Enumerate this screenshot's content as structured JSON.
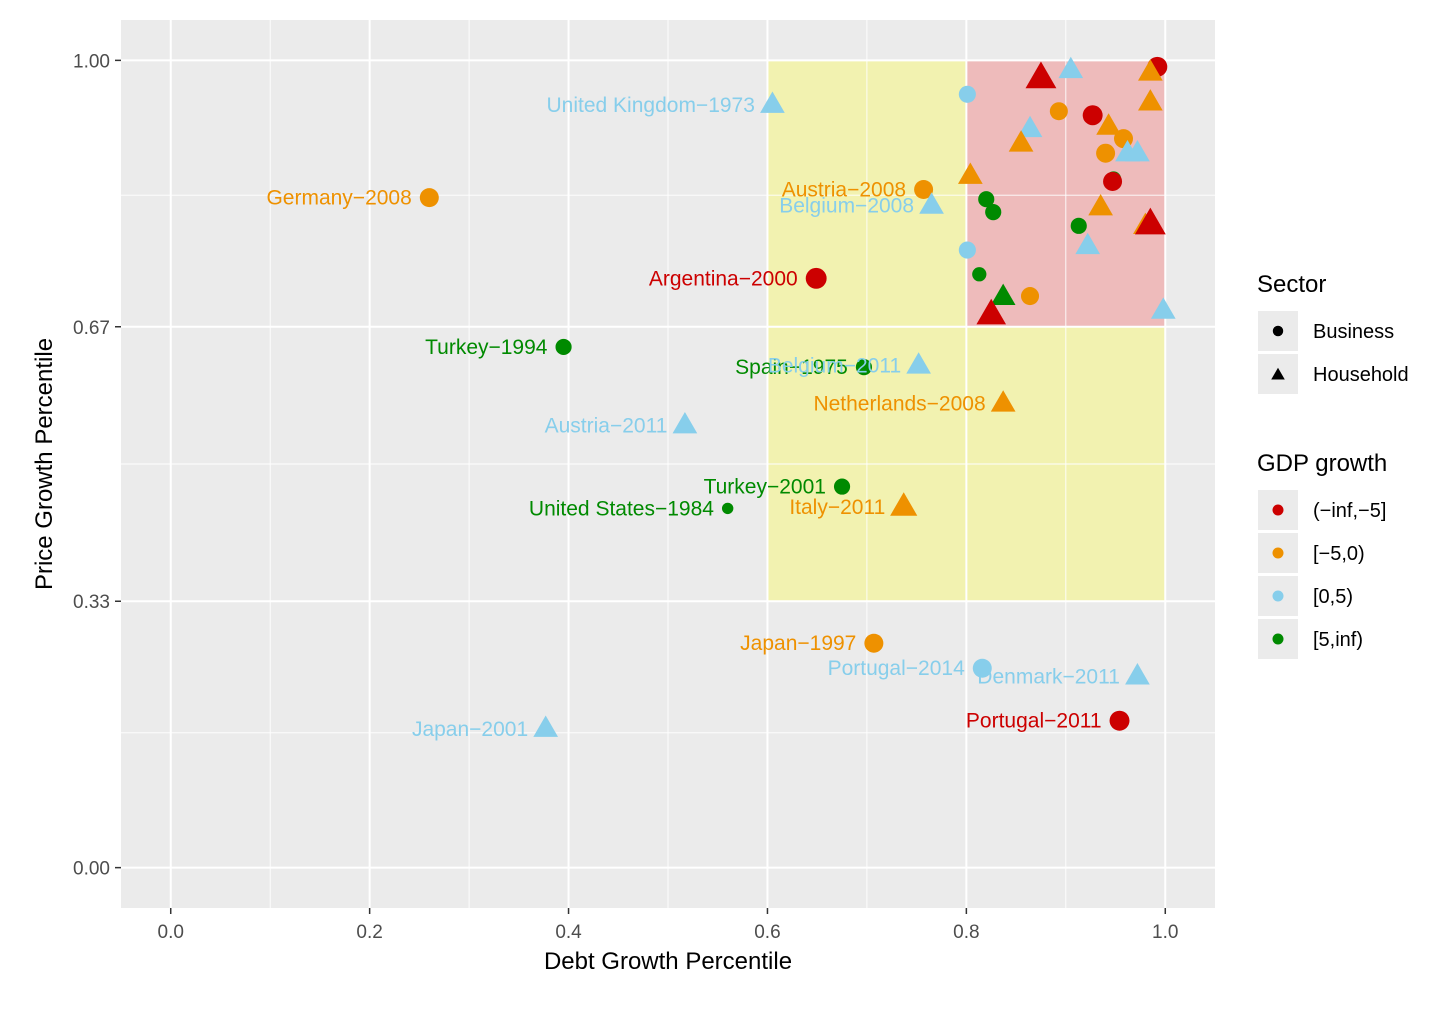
{
  "chart_data": {
    "type": "scatter",
    "title": "",
    "xlabel": "Debt Growth Percentile",
    "ylabel": "Price Growth Percentile",
    "xlim": [
      -0.05,
      1.05
    ],
    "ylim": [
      -0.05,
      1.05
    ],
    "x_ticks": [
      0.0,
      0.2,
      0.4,
      0.6,
      0.8,
      1.0
    ],
    "x_tick_labels": [
      "0.0",
      "0.2",
      "0.4",
      "0.6",
      "0.8",
      "1.0"
    ],
    "y_ticks": [
      0.0,
      0.33,
      0.67,
      1.0
    ],
    "y_tick_labels": [
      "0.00",
      "0.33",
      "0.67",
      "1.00"
    ],
    "x_minor_ticks": [
      0.1,
      0.3,
      0.5,
      0.7,
      0.9
    ],
    "y_minor_ticks": [
      0.167,
      0.5,
      0.833
    ],
    "grid": true,
    "regions": [
      {
        "name": "yellow-region",
        "x": [
          0.6,
          1.0
        ],
        "y": [
          0.33,
          1.0
        ],
        "color": "#f2f2b0"
      },
      {
        "name": "red-region",
        "x": [
          0.8,
          1.0
        ],
        "y": [
          0.67,
          1.0
        ],
        "color": "#eebbbb"
      }
    ],
    "colors": {
      "(−inf,−5]": "#cc0000",
      "[−5,0)": "#ee9100",
      "[0,5)": "#87ceeb",
      "[5,inf)": "#008a00"
    },
    "legend": {
      "placement": "right",
      "sector_title": "Sector",
      "sector_items": [
        {
          "label": "Business",
          "shape": "circle"
        },
        {
          "label": "Household",
          "shape": "triangle"
        }
      ],
      "gdp_title": "GDP growth",
      "gdp_items": [
        {
          "label": "(−inf,−5]"
        },
        {
          "label": "[−5,0)"
        },
        {
          "label": "[0,5)"
        },
        {
          "label": "[5,inf)"
        }
      ]
    },
    "points": [
      {
        "x": 0.605,
        "y": 0.945,
        "shape": "triangle",
        "gdp": "[0,5)",
        "size": 1,
        "label": "United Kingdom−1973"
      },
      {
        "x": 0.26,
        "y": 0.83,
        "shape": "circle",
        "gdp": "[−5,0)",
        "size": 1,
        "label": "Germany−2008"
      },
      {
        "x": 0.757,
        "y": 0.84,
        "shape": "circle",
        "gdp": "[−5,0)",
        "size": 1,
        "label": "Austria−2008"
      },
      {
        "x": 0.765,
        "y": 0.82,
        "shape": "triangle",
        "gdp": "[0,5)",
        "size": 1,
        "label": "Belgium−2008"
      },
      {
        "x": 0.649,
        "y": 0.73,
        "shape": "circle",
        "gdp": "(−inf,−5]",
        "size": 1.1,
        "label": "Argentina−2000"
      },
      {
        "x": 0.395,
        "y": 0.645,
        "shape": "circle",
        "gdp": "[5,inf)",
        "size": 0.85,
        "label": "Turkey−1994"
      },
      {
        "x": 0.697,
        "y": 0.62,
        "shape": "circle",
        "gdp": "[5,inf)",
        "size": 0.85,
        "label": "Spain−1975"
      },
      {
        "x": 0.752,
        "y": 0.622,
        "shape": "triangle",
        "gdp": "[0,5)",
        "size": 1,
        "label": "Belgium−2011"
      },
      {
        "x": 0.837,
        "y": 0.575,
        "shape": "triangle",
        "gdp": "[−5,0)",
        "size": 1,
        "label": "Netherlands−2008"
      },
      {
        "x": 0.517,
        "y": 0.548,
        "shape": "triangle",
        "gdp": "[0,5)",
        "size": 1,
        "label": "Austria−2011"
      },
      {
        "x": 0.675,
        "y": 0.472,
        "shape": "circle",
        "gdp": "[5,inf)",
        "size": 0.85,
        "label": "Turkey−2001"
      },
      {
        "x": 0.56,
        "y": 0.445,
        "shape": "circle",
        "gdp": "[5,inf)",
        "size": 0.6,
        "label": "United States−1984"
      },
      {
        "x": 0.737,
        "y": 0.447,
        "shape": "triangle",
        "gdp": "[−5,0)",
        "size": 1.1,
        "label": "Italy−2011"
      },
      {
        "x": 0.707,
        "y": 0.278,
        "shape": "circle",
        "gdp": "[−5,0)",
        "size": 1,
        "label": "Japan−1997"
      },
      {
        "x": 0.816,
        "y": 0.247,
        "shape": "circle",
        "gdp": "[0,5)",
        "size": 1,
        "label": "Portugal−2014"
      },
      {
        "x": 0.972,
        "y": 0.237,
        "shape": "triangle",
        "gdp": "[0,5)",
        "size": 1,
        "label": "Denmark−2011"
      },
      {
        "x": 0.954,
        "y": 0.182,
        "shape": "circle",
        "gdp": "(−inf,−5]",
        "size": 1.05,
        "label": "Portugal−2011"
      },
      {
        "x": 0.377,
        "y": 0.172,
        "shape": "triangle",
        "gdp": "[0,5)",
        "size": 1,
        "label": "Japan−2001"
      },
      {
        "x": 0.992,
        "y": 0.992,
        "shape": "circle",
        "gdp": "(−inf,−5]",
        "size": 1.05
      },
      {
        "x": 0.875,
        "y": 0.978,
        "shape": "triangle",
        "gdp": "(−inf,−5]",
        "size": 1.25
      },
      {
        "x": 0.905,
        "y": 0.988,
        "shape": "triangle",
        "gdp": "[0,5)",
        "size": 1
      },
      {
        "x": 0.985,
        "y": 0.985,
        "shape": "triangle",
        "gdp": "[−5,0)",
        "size": 1
      },
      {
        "x": 0.801,
        "y": 0.958,
        "shape": "circle",
        "gdp": "[0,5)",
        "size": 0.9
      },
      {
        "x": 0.985,
        "y": 0.948,
        "shape": "triangle",
        "gdp": "[−5,0)",
        "size": 1
      },
      {
        "x": 0.893,
        "y": 0.937,
        "shape": "circle",
        "gdp": "[−5,0)",
        "size": 0.95
      },
      {
        "x": 0.927,
        "y": 0.932,
        "shape": "circle",
        "gdp": "(−inf,−5]",
        "size": 1.05
      },
      {
        "x": 0.943,
        "y": 0.918,
        "shape": "triangle",
        "gdp": "[−5,0)",
        "size": 1
      },
      {
        "x": 0.864,
        "y": 0.915,
        "shape": "triangle",
        "gdp": "[0,5)",
        "size": 1
      },
      {
        "x": 0.958,
        "y": 0.903,
        "shape": "circle",
        "gdp": "[−5,0)",
        "size": 1
      },
      {
        "x": 0.855,
        "y": 0.897,
        "shape": "triangle",
        "gdp": "[−5,0)",
        "size": 1
      },
      {
        "x": 0.94,
        "y": 0.885,
        "shape": "circle",
        "gdp": "[−5,0)",
        "size": 1
      },
      {
        "x": 0.962,
        "y": 0.885,
        "shape": "triangle",
        "gdp": "[0,5)",
        "size": 1
      },
      {
        "x": 0.972,
        "y": 0.885,
        "shape": "triangle",
        "gdp": "[0,5)",
        "size": 1
      },
      {
        "x": 0.948,
        "y": 0.853,
        "shape": "circle",
        "gdp": "[5,inf)",
        "size": 0.8
      },
      {
        "x": 0.947,
        "y": 0.85,
        "shape": "circle",
        "gdp": "(−inf,−5]",
        "size": 1
      },
      {
        "x": 0.804,
        "y": 0.857,
        "shape": "triangle",
        "gdp": "[−5,0)",
        "size": 1
      },
      {
        "x": 0.82,
        "y": 0.828,
        "shape": "circle",
        "gdp": "[5,inf)",
        "size": 0.85
      },
      {
        "x": 0.827,
        "y": 0.812,
        "shape": "circle",
        "gdp": "[5,inf)",
        "size": 0.85
      },
      {
        "x": 0.935,
        "y": 0.818,
        "shape": "triangle",
        "gdp": "[−5,0)",
        "size": 1
      },
      {
        "x": 0.913,
        "y": 0.795,
        "shape": "circle",
        "gdp": "[5,inf)",
        "size": 0.85
      },
      {
        "x": 0.98,
        "y": 0.795,
        "shape": "triangle",
        "gdp": "[−5,0)",
        "size": 1
      },
      {
        "x": 0.985,
        "y": 0.797,
        "shape": "triangle",
        "gdp": "(−inf,−5]",
        "size": 1.25
      },
      {
        "x": 0.801,
        "y": 0.765,
        "shape": "circle",
        "gdp": "[0,5)",
        "size": 0.9
      },
      {
        "x": 0.922,
        "y": 0.77,
        "shape": "triangle",
        "gdp": "[0,5)",
        "size": 1
      },
      {
        "x": 0.813,
        "y": 0.735,
        "shape": "circle",
        "gdp": "[5,inf)",
        "size": 0.75
      },
      {
        "x": 0.837,
        "y": 0.707,
        "shape": "triangle",
        "gdp": "[5,inf)",
        "size": 1
      },
      {
        "x": 0.864,
        "y": 0.708,
        "shape": "circle",
        "gdp": "[−5,0)",
        "size": 0.95
      },
      {
        "x": 0.825,
        "y": 0.685,
        "shape": "triangle",
        "gdp": "(−inf,−5]",
        "size": 1.2
      },
      {
        "x": 0.998,
        "y": 0.69,
        "shape": "triangle",
        "gdp": "[0,5)",
        "size": 1
      }
    ]
  }
}
